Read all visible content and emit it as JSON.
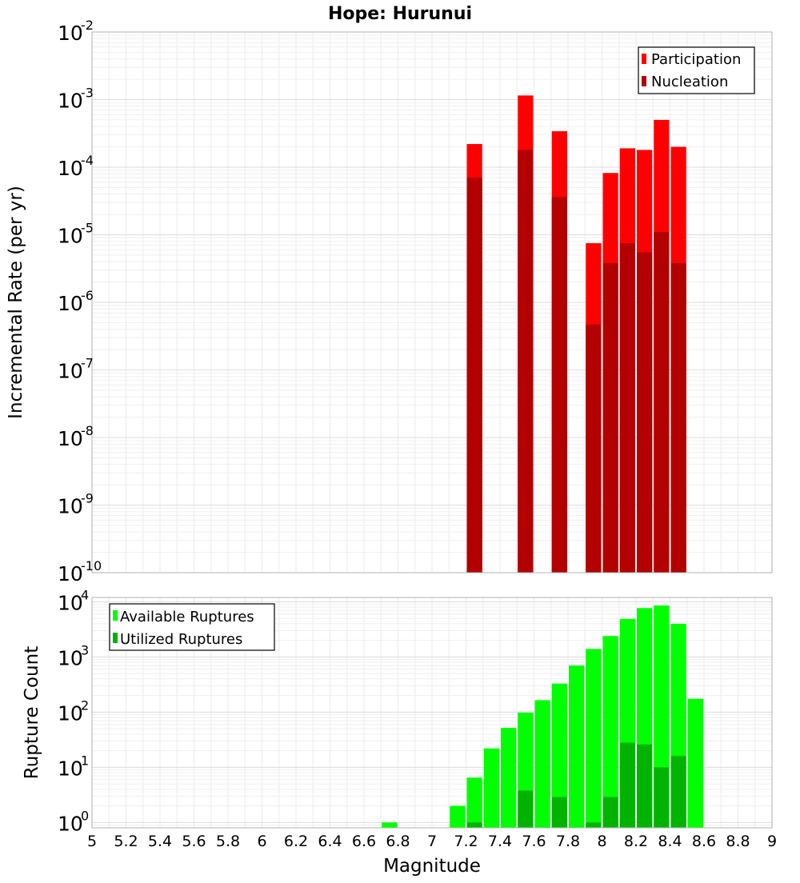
{
  "chart_data": [
    {
      "type": "bar",
      "title": "Hope: Hurunui",
      "xlabel": "",
      "ylabel": "Incremental Rate (per yr)",
      "xlim": [
        5,
        9
      ],
      "ylim": [
        1e-10,
        0.01
      ],
      "yscale": "log",
      "grid": true,
      "legend_position": "top-right",
      "y_tick_labels": [
        {
          "base": "10",
          "exp": "-10"
        },
        {
          "base": "10",
          "exp": "-9"
        },
        {
          "base": "10",
          "exp": "-8"
        },
        {
          "base": "10",
          "exp": "-7"
        },
        {
          "base": "10",
          "exp": "-6"
        },
        {
          "base": "10",
          "exp": "-5"
        },
        {
          "base": "10",
          "exp": "-4"
        },
        {
          "base": "10",
          "exp": "-3"
        },
        {
          "base": "10",
          "exp": "-2"
        }
      ],
      "series": [
        {
          "name": "Participation",
          "color": "#ff0000",
          "x": [
            7.25,
            7.55,
            7.75,
            7.95,
            8.05,
            8.15,
            8.25,
            8.35,
            8.45
          ],
          "values": [
            0.00022,
            0.00115,
            0.00034,
            7.5e-06,
            8.2e-05,
            0.00019,
            0.00018,
            0.0005,
            0.0002
          ]
        },
        {
          "name": "Nucleation",
          "color": "#b30000",
          "x": [
            7.25,
            7.55,
            7.75,
            7.95,
            8.05,
            8.15,
            8.25,
            8.35,
            8.45
          ],
          "values": [
            7e-05,
            0.00018,
            3.6e-05,
            4.7e-07,
            3.8e-06,
            7.5e-06,
            5.5e-06,
            1.1e-05,
            3.8e-06
          ]
        }
      ]
    },
    {
      "type": "bar",
      "title": "",
      "xlabel": "Magnitude",
      "ylabel": "Rupture Count",
      "xlim": [
        5,
        9
      ],
      "ylim": [
        0.8,
        12000
      ],
      "yscale": "log",
      "grid": true,
      "legend_position": "top-left",
      "x_tick_labels": [
        "5",
        "5.2",
        "5.4",
        "5.6",
        "5.8",
        "6",
        "6.2",
        "6.4",
        "6.6",
        "6.8",
        "7",
        "7.2",
        "7.4",
        "7.6",
        "7.8",
        "8",
        "8.2",
        "8.4",
        "8.6",
        "8.8",
        "9"
      ],
      "y_tick_labels": [
        {
          "base": "10",
          "exp": "0"
        },
        {
          "base": "10",
          "exp": "1"
        },
        {
          "base": "10",
          "exp": "2"
        },
        {
          "base": "10",
          "exp": "3"
        },
        {
          "base": "10",
          "exp": "4"
        }
      ],
      "series": [
        {
          "name": "Available Ruptures",
          "color": "#00ff00",
          "x": [
            6.75,
            7.15,
            7.25,
            7.35,
            7.45,
            7.55,
            7.65,
            7.75,
            7.85,
            7.95,
            8.05,
            8.15,
            8.25,
            8.35,
            8.45,
            8.55
          ],
          "values": [
            1,
            2,
            6.5,
            22,
            52,
            98,
            165,
            330,
            700,
            1400,
            2400,
            4900,
            7700,
            8600,
            4000,
            175
          ]
        },
        {
          "name": "Utilized Ruptures",
          "color": "#00b300",
          "x": [
            7.25,
            7.55,
            7.75,
            7.95,
            8.05,
            8.15,
            8.25,
            8.35,
            8.45
          ],
          "values": [
            1,
            3.8,
            2.9,
            1,
            2.9,
            28,
            26,
            10,
            16
          ]
        }
      ]
    }
  ]
}
